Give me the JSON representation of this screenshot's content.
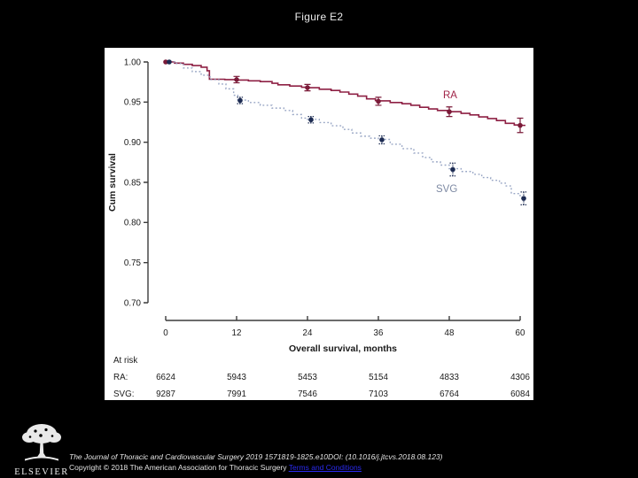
{
  "page": {
    "title": "Figure E2",
    "background": "#000000"
  },
  "footer": {
    "citation_line": "The Journal of Thoracic and Cardiovascular Surgery 2019 1571819-1825.e10DOI: (10.1016/j.jtcvs.2018.08.123)",
    "copyright_line": "Copyright © 2018 The American Association for Thoracic Surgery",
    "terms_link": "Terms and Conditions",
    "link_color": "#2a2af0",
    "publisher_logo_text": "ELSEVIER"
  },
  "chart_data": {
    "type": "line",
    "subtype": "kaplan-meier-step",
    "title": "",
    "xlabel": "Overall survival, months",
    "ylabel": "Cum survival",
    "xlim": [
      0,
      60
    ],
    "ylim": [
      0.7,
      1.0
    ],
    "x_ticks": [
      0,
      12,
      24,
      36,
      48,
      60
    ],
    "y_tick_labels": [
      "1.00",
      "0.95",
      "0.90",
      "0.85",
      "0.80",
      "0.75",
      "0.70"
    ],
    "grid": false,
    "legend_position": "inline-labels",
    "axis_color": "#3c3c3c",
    "text_color": "#1a1a1a",
    "series": [
      {
        "name": "RA",
        "color": "#8e2044",
        "marker_color": "#7a1a38",
        "label_color": "#a02448",
        "line_style": "solid",
        "markers": {
          "t": [
            0,
            12,
            24,
            36,
            48,
            60
          ],
          "survival": [
            1.0,
            0.978,
            0.968,
            0.951,
            0.938,
            0.921
          ],
          "ci": [
            0,
            0.004,
            0.004,
            0.005,
            0.006,
            0.009
          ]
        },
        "curve": [
          [
            0,
            1.0
          ],
          [
            1.5,
            0.9985
          ],
          [
            3,
            0.997
          ],
          [
            4.5,
            0.9955
          ],
          [
            6,
            0.9935
          ],
          [
            7,
            0.989
          ],
          [
            7.4,
            0.9785
          ],
          [
            10,
            0.978
          ],
          [
            12,
            0.9775
          ],
          [
            14,
            0.9765
          ],
          [
            16,
            0.9755
          ],
          [
            18,
            0.9735
          ],
          [
            19,
            0.9715
          ],
          [
            21,
            0.97
          ],
          [
            23,
            0.9685
          ],
          [
            24,
            0.968
          ],
          [
            26,
            0.966
          ],
          [
            28,
            0.9645
          ],
          [
            29.5,
            0.9625
          ],
          [
            31,
            0.96
          ],
          [
            32.5,
            0.9575
          ],
          [
            34,
            0.954
          ],
          [
            35.5,
            0.952
          ],
          [
            36,
            0.9515
          ],
          [
            38,
            0.9495
          ],
          [
            40,
            0.948
          ],
          [
            41.5,
            0.946
          ],
          [
            43,
            0.9435
          ],
          [
            44.5,
            0.9415
          ],
          [
            46,
            0.9395
          ],
          [
            48,
            0.938
          ],
          [
            50,
            0.936
          ],
          [
            51.5,
            0.934
          ],
          [
            53,
            0.9315
          ],
          [
            54.5,
            0.9295
          ],
          [
            56,
            0.927
          ],
          [
            57.5,
            0.9235
          ],
          [
            59,
            0.9215
          ],
          [
            60,
            0.921
          ]
        ]
      },
      {
        "name": "SVG",
        "color": "#97a5c4",
        "marker_color": "#1c2b52",
        "label_color": "#7d89a3",
        "line_style": "dotted",
        "markers": {
          "t": [
            0,
            12,
            24,
            36,
            48,
            60
          ],
          "survival": [
            1.0,
            0.952,
            0.928,
            0.903,
            0.866,
            0.83
          ],
          "ci": [
            0,
            0.004,
            0.004,
            0.005,
            0.008,
            0.008
          ]
        },
        "curve": [
          [
            0,
            1.0
          ],
          [
            1.5,
            0.998
          ],
          [
            3,
            0.9925
          ],
          [
            4.5,
            0.988
          ],
          [
            6,
            0.9835
          ],
          [
            7.5,
            0.978
          ],
          [
            9,
            0.9725
          ],
          [
            10.2,
            0.9665
          ],
          [
            11.5,
            0.9585
          ],
          [
            12.2,
            0.9525
          ],
          [
            14,
            0.9495
          ],
          [
            16,
            0.946
          ],
          [
            18,
            0.9425
          ],
          [
            20,
            0.9395
          ],
          [
            21.5,
            0.9345
          ],
          [
            23,
            0.93
          ],
          [
            24,
            0.9285
          ],
          [
            26,
            0.9245
          ],
          [
            28,
            0.9205
          ],
          [
            30,
            0.916
          ],
          [
            31.5,
            0.9115
          ],
          [
            33,
            0.9075
          ],
          [
            34.5,
            0.905
          ],
          [
            36,
            0.9035
          ],
          [
            38,
            0.8975
          ],
          [
            40,
            0.892
          ],
          [
            42,
            0.8865
          ],
          [
            43.5,
            0.881
          ],
          [
            45,
            0.8755
          ],
          [
            46.5,
            0.8715
          ],
          [
            48,
            0.867
          ],
          [
            50,
            0.8635
          ],
          [
            52,
            0.86
          ],
          [
            53.5,
            0.856
          ],
          [
            55,
            0.8525
          ],
          [
            56.5,
            0.849
          ],
          [
            57.5,
            0.8455
          ],
          [
            58.5,
            0.836
          ],
          [
            60,
            0.8315
          ]
        ]
      }
    ],
    "at_risk_table": {
      "title": "At risk",
      "rows": [
        {
          "label": "RA:",
          "values": [
            "6624",
            "5943",
            "5453",
            "5154",
            "4833",
            "4306"
          ]
        },
        {
          "label": "SVG:",
          "values": [
            "9287",
            "7991",
            "7546",
            "7103",
            "6764",
            "6084"
          ]
        }
      ]
    }
  }
}
